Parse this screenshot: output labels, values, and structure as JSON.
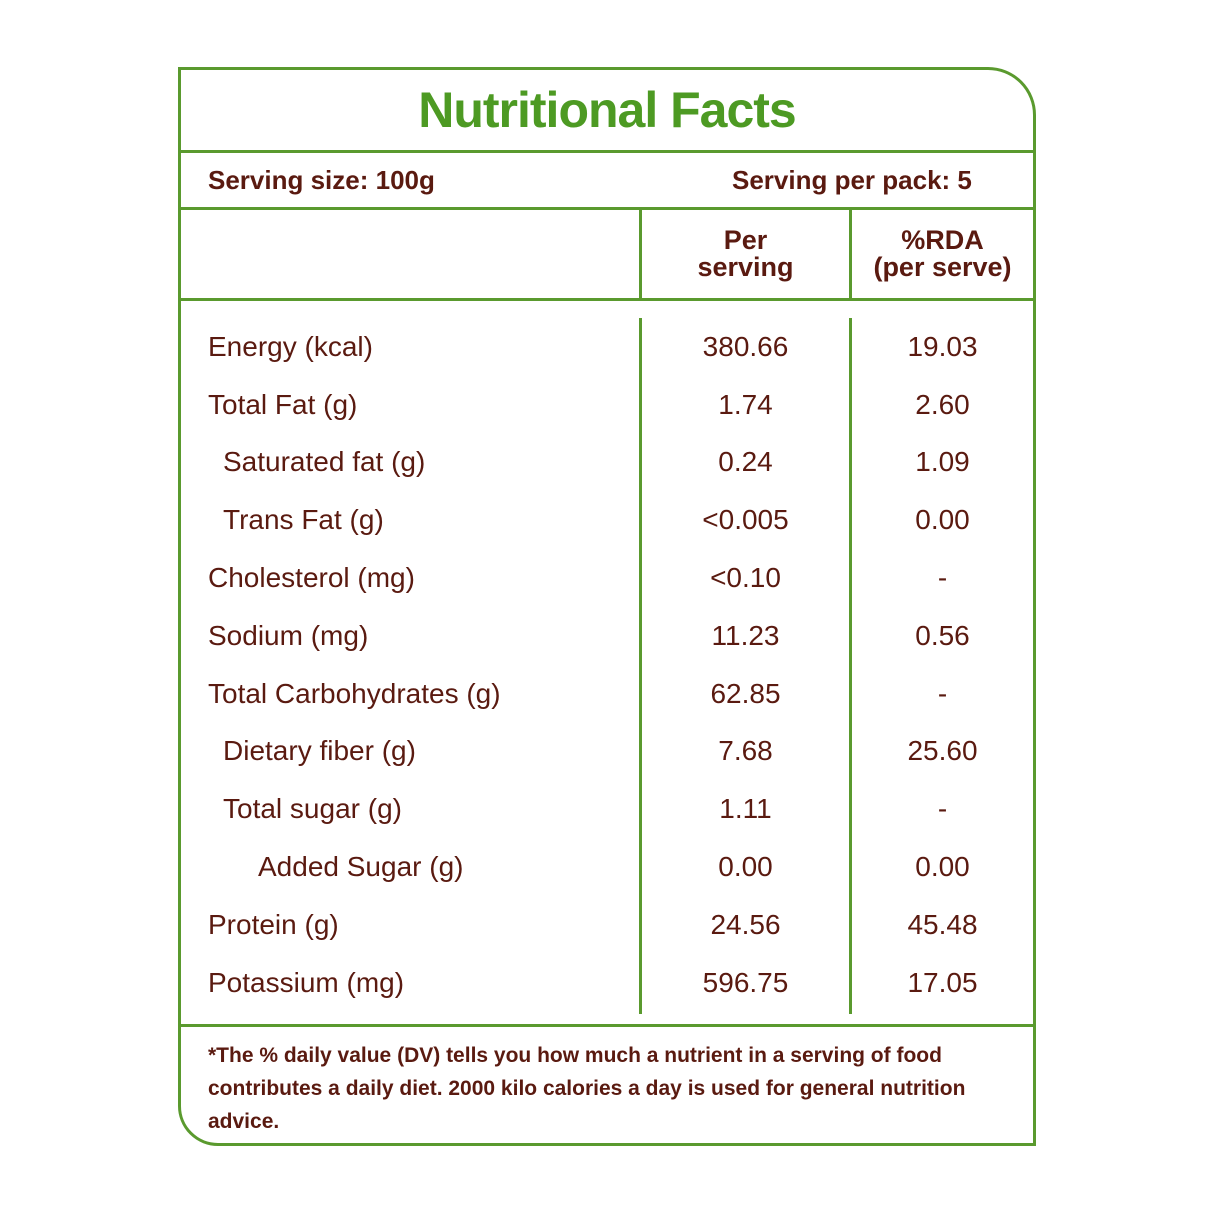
{
  "title": "Nutritional Facts",
  "serving": {
    "size": "Serving size: 100g",
    "per_pack": "Serving per pack: 5"
  },
  "columns": {
    "per_serving_line1": "Per",
    "per_serving_line2": "serving",
    "rda_line1": "%RDA",
    "rda_line2": "(per serve)"
  },
  "rows": [
    {
      "nutrient": "Energy (kcal)",
      "per_serving": "380.66",
      "rda": "19.03",
      "indent": 0
    },
    {
      "nutrient": "Total Fat (g)",
      "per_serving": "1.74",
      "rda": "2.60",
      "indent": 0
    },
    {
      "nutrient": "Saturated fat (g)",
      "per_serving": "0.24",
      "rda": "1.09",
      "indent": 1
    },
    {
      "nutrient": "Trans Fat (g)",
      "per_serving": "<0.005",
      "rda": "0.00",
      "indent": 1
    },
    {
      "nutrient": "Cholesterol (mg)",
      "per_serving": "<0.10",
      "rda": "-",
      "indent": 0
    },
    {
      "nutrient": "Sodium (mg)",
      "per_serving": "11.23",
      "rda": "0.56",
      "indent": 0
    },
    {
      "nutrient": "Total Carbohydrates  (g)",
      "per_serving": "62.85",
      "rda": "-",
      "indent": 0
    },
    {
      "nutrient": "Dietary fiber (g)",
      "per_serving": "7.68",
      "rda": "25.60",
      "indent": 1
    },
    {
      "nutrient": "Total sugar (g)",
      "per_serving": "1.11",
      "rda": "-",
      "indent": 1
    },
    {
      "nutrient": "Added Sugar (g)",
      "per_serving": "0.00",
      "rda": "0.00",
      "indent": 2
    },
    {
      "nutrient": "Protein (g)",
      "per_serving": "24.56",
      "rda": "45.48",
      "indent": 0
    },
    {
      "nutrient": "Potassium (mg)",
      "per_serving": "596.75",
      "rda": "17.05",
      "indent": 0
    }
  ],
  "footnote": "*The % daily value (DV) tells you how much a nutrient in a serving of food contributes a daily diet. 2000 kilo calories a day is used for general nutrition advice.",
  "colors": {
    "border": "#5a9a2e",
    "title": "#4d9a23",
    "text": "#5a1a10"
  }
}
